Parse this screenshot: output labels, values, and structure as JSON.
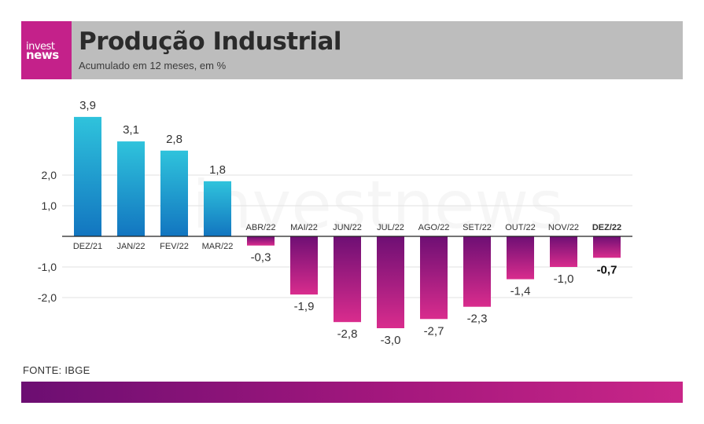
{
  "header": {
    "logo_line1": "invest",
    "logo_line2": "news",
    "title": "Produção Industrial",
    "subtitle": "Acumulado em 12 meses, em %"
  },
  "watermark": "investnews",
  "source": "FONTE: IBGE",
  "colors": {
    "positive_top": "#2fc3dc",
    "positive_bottom": "#1275c0",
    "negative_top": "#6e0f74",
    "negative_bottom": "#d92c8d",
    "header_bg": "#bdbdbd",
    "brand": "#c4218a"
  },
  "chart_data": {
    "type": "bar",
    "categories": [
      "DEZ/21",
      "JAN/22",
      "FEV/22",
      "MAR/22",
      "ABR/22",
      "MAI/22",
      "JUN/22",
      "JUL/22",
      "AGO/22",
      "SET/22",
      "OUT/22",
      "NOV/22",
      "DEZ/22"
    ],
    "values": [
      3.9,
      3.1,
      2.8,
      1.8,
      -0.3,
      -1.9,
      -2.8,
      -3.0,
      -2.7,
      -2.3,
      -1.4,
      -1.0,
      -0.7
    ],
    "value_labels": [
      "3,9",
      "3,1",
      "2,8",
      "1,8",
      "-0,3",
      "-1,9",
      "-2,8",
      "-3,0",
      "-2,7",
      "-2,3",
      "-1,4",
      "-1,0",
      "-0,7"
    ],
    "highlight_index": 12,
    "yticks": [
      2.0,
      1.0,
      -1.0,
      -2.0
    ],
    "ytick_labels": [
      "2,0",
      "1,0",
      "-1,0",
      "-2,0"
    ],
    "ylim": [
      -3.0,
      3.9
    ],
    "grid": true
  }
}
